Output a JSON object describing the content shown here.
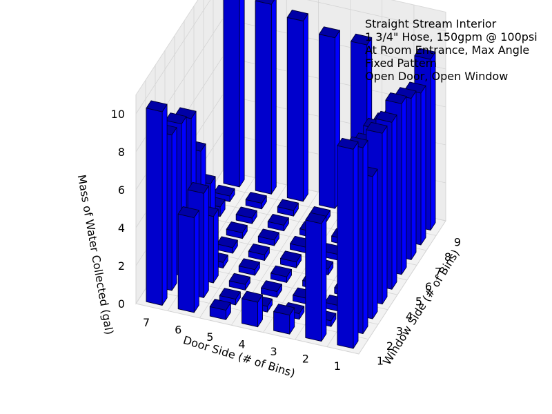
{
  "chart_data": {
    "type": "bar3d",
    "title_lines": [
      "Straight Stream Interior",
      "1 3/4\" Hose, 150gpm @ 100psi",
      "At Room Entrance, Max Angle",
      "Fixed Pattern",
      "Open Door, Open Window"
    ],
    "xlabel": "Door Side (# of Bins)",
    "ylabel": "Window Side (# of Bins)",
    "zlabel": "Mass of Water Collected (gal)",
    "x_ticks": [
      "1",
      "2",
      "3",
      "4",
      "5",
      "6",
      "7"
    ],
    "y_ticks": [
      "1",
      "2",
      "3",
      "4",
      "5",
      "6",
      "7",
      "8",
      "9"
    ],
    "z_ticks": [
      "0",
      "2",
      "4",
      "6",
      "8",
      "10"
    ],
    "zlim": [
      0,
      11
    ],
    "bar_color": "#0000ff",
    "grid": true,
    "values": [
      [
        10.5,
        9.8,
        7.5,
        9.0,
        8.8,
        9.0,
        8.5,
        8.0,
        9.0
      ],
      [
        6.2,
        0.3,
        0.3,
        0.3,
        0.3,
        6.5,
        6.5,
        6.0,
        5.5
      ],
      [
        1.0,
        0.3,
        0.3,
        0.3,
        0.3,
        0.3,
        0.3,
        0.3,
        9.0
      ],
      [
        1.3,
        0.3,
        0.3,
        0.3,
        0.3,
        0.3,
        0.3,
        0.3,
        9.0
      ],
      [
        0.5,
        0.3,
        0.3,
        0.3,
        0.3,
        0.3,
        0.3,
        0.3,
        9.5
      ],
      [
        5.0,
        5.5,
        3.5,
        0.3,
        0.3,
        0.3,
        0.3,
        0.3,
        10.0
      ],
      [
        10.2,
        8.2,
        8.0,
        7.5,
        5.0,
        2.5,
        0.5,
        0.3,
        10.0
      ]
    ]
  }
}
